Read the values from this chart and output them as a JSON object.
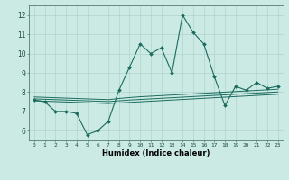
{
  "xlabel": "Humidex (Indice chaleur)",
  "bg_color": "#cceae4",
  "grid_color": "#b0d4ce",
  "line_color": "#1a6b5e",
  "xlim": [
    -0.5,
    23.5
  ],
  "ylim": [
    5.5,
    12.5
  ],
  "yticks": [
    6,
    7,
    8,
    9,
    10,
    11,
    12
  ],
  "xticks": [
    0,
    1,
    2,
    3,
    4,
    5,
    6,
    7,
    8,
    9,
    10,
    11,
    12,
    13,
    14,
    15,
    16,
    17,
    18,
    19,
    20,
    21,
    22,
    23
  ],
  "main_line": [
    7.6,
    7.5,
    7.0,
    7.0,
    6.9,
    5.8,
    6.0,
    6.5,
    8.1,
    9.3,
    10.5,
    10.0,
    10.3,
    9.0,
    12.0,
    11.1,
    10.5,
    8.8,
    7.3,
    8.3,
    8.1,
    8.5,
    8.2,
    8.3
  ],
  "line2": [
    7.75,
    7.73,
    7.71,
    7.69,
    7.67,
    7.65,
    7.63,
    7.61,
    7.67,
    7.72,
    7.76,
    7.79,
    7.82,
    7.85,
    7.88,
    7.91,
    7.94,
    7.97,
    8.0,
    8.03,
    8.06,
    8.09,
    8.12,
    8.15
  ],
  "line3": [
    7.65,
    7.63,
    7.61,
    7.59,
    7.57,
    7.55,
    7.53,
    7.51,
    7.55,
    7.59,
    7.62,
    7.65,
    7.68,
    7.71,
    7.74,
    7.77,
    7.8,
    7.83,
    7.86,
    7.89,
    7.92,
    7.95,
    7.98,
    8.01
  ],
  "line4": [
    7.55,
    7.53,
    7.51,
    7.49,
    7.47,
    7.45,
    7.43,
    7.41,
    7.44,
    7.47,
    7.5,
    7.53,
    7.56,
    7.59,
    7.62,
    7.65,
    7.68,
    7.71,
    7.74,
    7.77,
    7.8,
    7.83,
    7.86,
    7.89
  ],
  "xtick_fontsize": 4.5,
  "ytick_fontsize": 5.5,
  "xlabel_fontsize": 6.0
}
